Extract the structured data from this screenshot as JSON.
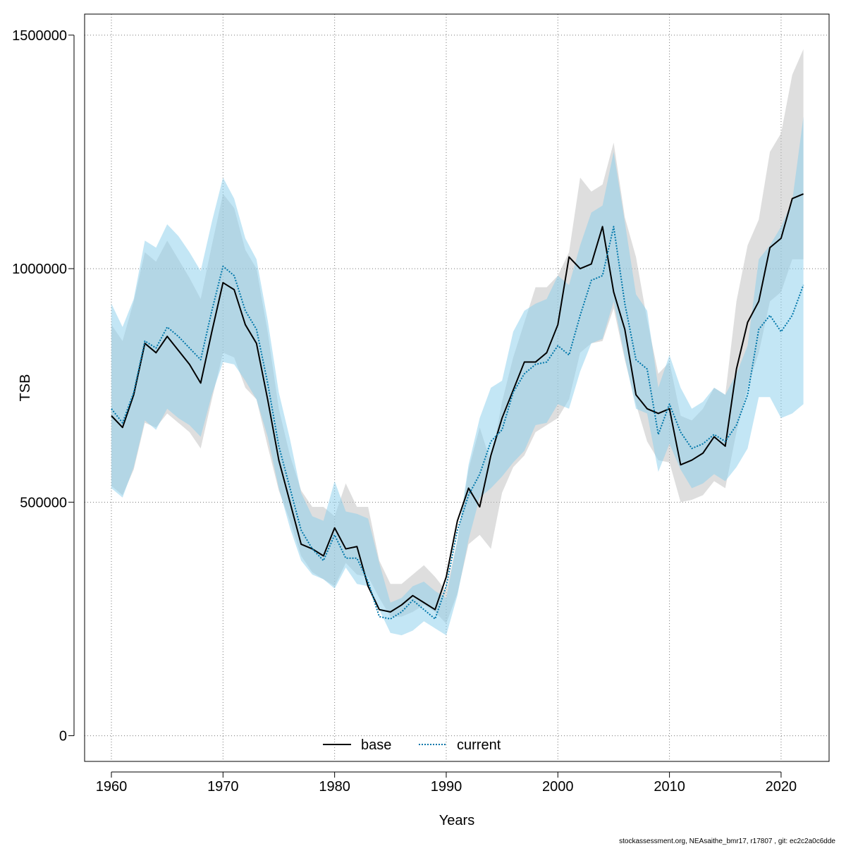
{
  "chart_data": {
    "type": "line",
    "xlabel": "Years",
    "ylabel": "TSB",
    "xlim": [
      1957.6,
      2024.3
    ],
    "ylim": [
      -55000,
      1545000
    ],
    "xticks": [
      1960,
      1970,
      1980,
      1990,
      2000,
      2010,
      2020
    ],
    "yticks": [
      0,
      500000,
      1000000,
      1500000
    ],
    "grid": true,
    "legend_position": "bottom-center",
    "x": [
      1960,
      1961,
      1962,
      1963,
      1964,
      1965,
      1966,
      1967,
      1968,
      1969,
      1970,
      1971,
      1972,
      1973,
      1974,
      1975,
      1976,
      1977,
      1978,
      1979,
      1980,
      1981,
      1982,
      1983,
      1984,
      1985,
      1986,
      1987,
      1988,
      1989,
      1990,
      1991,
      1992,
      1993,
      1994,
      1995,
      1996,
      1997,
      1998,
      1999,
      2000,
      2001,
      2002,
      2003,
      2004,
      2005,
      2006,
      2007,
      2008,
      2009,
      2010,
      2011,
      2012,
      2013,
      2014,
      2015,
      2016,
      2017,
      2018,
      2019,
      2020,
      2021,
      2022
    ],
    "series": [
      {
        "name": "base",
        "color": "#000000",
        "band_color": "#bebebe",
        "values": [
          685000,
          660000,
          730000,
          840000,
          820000,
          855000,
          825000,
          795000,
          755000,
          865000,
          970000,
          955000,
          880000,
          840000,
          720000,
          590000,
          500000,
          410000,
          400000,
          385000,
          445000,
          400000,
          405000,
          320000,
          270000,
          265000,
          280000,
          300000,
          285000,
          270000,
          340000,
          460000,
          530000,
          490000,
          600000,
          680000,
          740000,
          800000,
          800000,
          820000,
          880000,
          1025000,
          1000000,
          1010000,
          1090000,
          950000,
          870000,
          730000,
          700000,
          690000,
          700000,
          580000,
          590000,
          605000,
          640000,
          620000,
          785000,
          885000,
          930000,
          1045000,
          1065000,
          1150000,
          1160000
        ],
        "lower": [
          535000,
          515000,
          570000,
          670000,
          660000,
          690000,
          670000,
          650000,
          615000,
          720000,
          820000,
          810000,
          745000,
          720000,
          620000,
          525000,
          460000,
          385000,
          350000,
          335000,
          320000,
          370000,
          345000,
          340000,
          295000,
          255000,
          255000,
          265000,
          280000,
          265000,
          240000,
          305000,
          410000,
          430000,
          400000,
          520000,
          575000,
          600000,
          650000,
          665000,
          680000,
          720000,
          820000,
          840000,
          845000,
          915000,
          805000,
          710000,
          630000,
          590000,
          585000,
          500000,
          505000,
          515000,
          545000,
          530000,
          650000,
          745000,
          820000,
          930000,
          950000,
          1020000,
          1020000
        ],
        "upper": [
          880000,
          845000,
          930000,
          1035000,
          1015000,
          1060000,
          1020000,
          980000,
          935000,
          1050000,
          1160000,
          1130000,
          1040000,
          1000000,
          865000,
          700000,
          600000,
          525000,
          490000,
          490000,
          470000,
          540000,
          490000,
          490000,
          375000,
          325000,
          325000,
          345000,
          365000,
          340000,
          310000,
          420000,
          570000,
          660000,
          585000,
          715000,
          810000,
          885000,
          960000,
          960000,
          985000,
          1035000,
          1195000,
          1165000,
          1180000,
          1270000,
          1110000,
          1025000,
          890000,
          775000,
          800000,
          685000,
          675000,
          700000,
          745000,
          730000,
          930000,
          1050000,
          1105000,
          1250000,
          1290000,
          1415000,
          1470000
        ]
      },
      {
        "name": "current",
        "color": "#0077aa",
        "band_color": "#87ceeb",
        "values": [
          700000,
          670000,
          735000,
          845000,
          830000,
          875000,
          855000,
          830000,
          805000,
          910000,
          1005000,
          985000,
          910000,
          870000,
          755000,
          620000,
          530000,
          440000,
          400000,
          375000,
          430000,
          380000,
          380000,
          330000,
          255000,
          250000,
          265000,
          290000,
          270000,
          250000,
          320000,
          440000,
          515000,
          560000,
          630000,
          655000,
          735000,
          775000,
          795000,
          800000,
          835000,
          815000,
          900000,
          975000,
          985000,
          1090000,
          925000,
          805000,
          785000,
          645000,
          710000,
          650000,
          615000,
          625000,
          645000,
          630000,
          665000,
          730000,
          870000,
          900000,
          865000,
          900000,
          965000
        ],
        "lower": [
          530000,
          510000,
          575000,
          675000,
          655000,
          700000,
          680000,
          665000,
          640000,
          730000,
          800000,
          795000,
          760000,
          720000,
          640000,
          530000,
          445000,
          375000,
          345000,
          335000,
          315000,
          360000,
          325000,
          320000,
          270000,
          220000,
          215000,
          225000,
          245000,
          230000,
          215000,
          300000,
          420000,
          510000,
          530000,
          555000,
          585000,
          610000,
          665000,
          670000,
          710000,
          700000,
          780000,
          840000,
          850000,
          930000,
          810000,
          700000,
          690000,
          565000,
          625000,
          570000,
          530000,
          540000,
          560000,
          545000,
          575000,
          615000,
          725000,
          725000,
          680000,
          690000,
          710000
        ],
        "upper": [
          925000,
          875000,
          935000,
          1060000,
          1045000,
          1095000,
          1070000,
          1035000,
          995000,
          1100000,
          1195000,
          1150000,
          1065000,
          1020000,
          890000,
          735000,
          635000,
          520000,
          470000,
          460000,
          545000,
          480000,
          475000,
          465000,
          370000,
          285000,
          295000,
          320000,
          330000,
          310000,
          295000,
          420000,
          580000,
          680000,
          745000,
          760000,
          865000,
          910000,
          925000,
          935000,
          985000,
          965000,
          1050000,
          1120000,
          1135000,
          1250000,
          1100000,
          945000,
          910000,
          745000,
          815000,
          745000,
          700000,
          715000,
          745000,
          730000,
          775000,
          835000,
          1020000,
          1050000,
          1090000,
          1145000,
          1325000
        ]
      }
    ]
  },
  "footer": {
    "note": "stockassessment.org, NEAsaithe_bmr17, r17807 , git: ec2c2a0c6dde"
  }
}
